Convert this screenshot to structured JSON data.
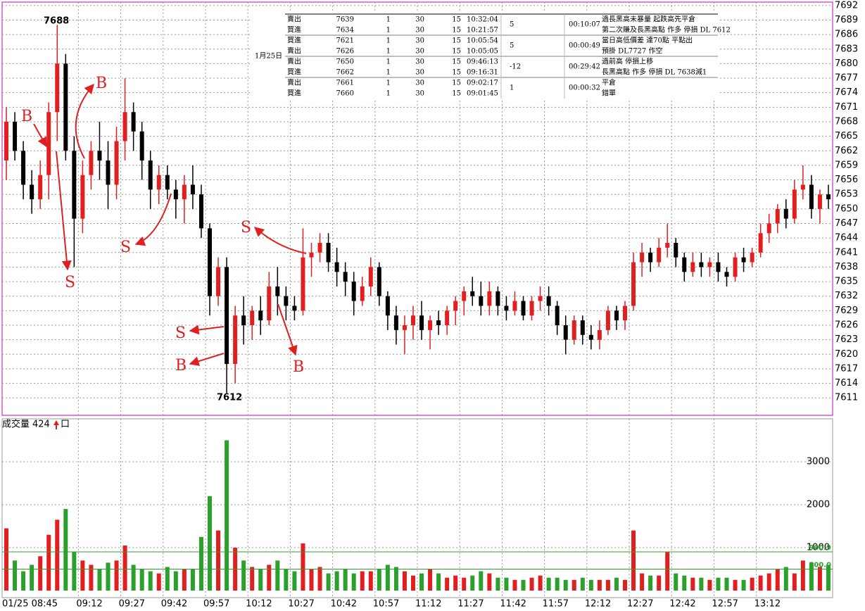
{
  "chart_data": {
    "type": "candlestick",
    "categories": [
      "01/25 08:45",
      null,
      null,
      null,
      null,
      null,
      null,
      null,
      null,
      "09:12",
      null,
      null,
      null,
      null,
      "09:27",
      null,
      null,
      null,
      null,
      "09:42",
      null,
      null,
      null,
      null,
      "09:57",
      null,
      null,
      null,
      null,
      "10:12",
      null,
      null,
      null,
      null,
      "10:27",
      null,
      null,
      null,
      null,
      "10:42",
      null,
      null,
      null,
      null,
      "10:57",
      null,
      null,
      null,
      null,
      "11:12",
      null,
      null,
      null,
      null,
      "11:27",
      null,
      null,
      null,
      null,
      "11:42",
      null,
      null,
      null,
      null,
      "11:57",
      null,
      null,
      null,
      null,
      "12:12",
      null,
      null,
      null,
      null,
      "12:27",
      null,
      null,
      null,
      null,
      "12:42",
      null,
      null,
      null,
      null,
      "12:57",
      null,
      null,
      null,
      null,
      "13:12",
      null,
      null,
      null,
      null,
      null,
      null,
      null,
      null
    ],
    "open": [
      7660,
      7668,
      7662,
      7655,
      7652,
      7657,
      7670,
      7680,
      7662,
      7648,
      7657,
      7662,
      7660,
      7655,
      7664,
      7670,
      7666,
      7660,
      7654,
      7657,
      7654,
      7652,
      7655,
      7653,
      7646,
      7632,
      7638,
      7618,
      7628,
      7626,
      7629,
      7627,
      7634,
      7632,
      7630,
      7629,
      7640,
      7641,
      7643,
      7639,
      7637,
      7635,
      7631,
      7634,
      7638,
      7632,
      7628,
      7625,
      7626,
      7628,
      7625,
      7627,
      7626,
      7629,
      7631,
      7633,
      7632,
      7630,
      7633,
      7630,
      7629,
      7631,
      7628,
      7631,
      7632,
      7630,
      7626,
      7623,
      7627,
      7624,
      7623,
      7625,
      7629,
      7627,
      7630,
      7639,
      7641,
      7639,
      7642,
      7643,
      7640,
      7637,
      7639,
      7638,
      7639,
      7637,
      7636,
      7640,
      7639,
      7641,
      7645,
      7647,
      7650,
      7648,
      7654,
      7655,
      7650,
      7653
    ],
    "high": [
      7671,
      7670,
      7664,
      7658,
      7660,
      7672,
      7688,
      7682,
      7665,
      7660,
      7664,
      7668,
      7664,
      7667,
      7677,
      7672,
      7668,
      7662,
      7659,
      7659,
      7656,
      7657,
      7659,
      7655,
      7647,
      7640,
      7640,
      7630,
      7632,
      7630,
      7632,
      7637,
      7638,
      7634,
      7632,
      7646,
      7643,
      7645,
      7645,
      7642,
      7639,
      7637,
      7636,
      7640,
      7639,
      7633,
      7630,
      7628,
      7630,
      7631,
      7628,
      7629,
      7630,
      7632,
      7634,
      7636,
      7635,
      7635,
      7634,
      7632,
      7633,
      7632,
      7632,
      7634,
      7634,
      7631,
      7628,
      7628,
      7628,
      7626,
      7627,
      7630,
      7630,
      7631,
      7641,
      7643,
      7642,
      7644,
      7647,
      7644,
      7641,
      7641,
      7641,
      7640,
      7641,
      7638,
      7641,
      7642,
      7642,
      7647,
      7649,
      7651,
      7652,
      7656,
      7659,
      7657,
      7654,
      7655
    ],
    "low": [
      7656,
      7660,
      7652,
      7649,
      7650,
      7652,
      7664,
      7660,
      7638,
      7645,
      7654,
      7656,
      7650,
      7652,
      7660,
      7662,
      7656,
      7650,
      7651,
      7652,
      7648,
      7647,
      7650,
      7644,
      7628,
      7630,
      7612,
      7614,
      7622,
      7623,
      7624,
      7626,
      7628,
      7627,
      7627,
      7628,
      7636,
      7639,
      7637,
      7634,
      7632,
      7628,
      7630,
      7632,
      7630,
      7625,
      7622,
      7620,
      7623,
      7623,
      7621,
      7624,
      7624,
      7626,
      7628,
      7630,
      7628,
      7628,
      7628,
      7627,
      7628,
      7627,
      7627,
      7629,
      7628,
      7624,
      7620,
      7622,
      7622,
      7621,
      7621,
      7624,
      7625,
      7625,
      7629,
      7636,
      7637,
      7638,
      7640,
      7638,
      7635,
      7636,
      7636,
      7636,
      7635,
      7634,
      7635,
      7637,
      7638,
      7640,
      7643,
      7645,
      7646,
      7647,
      7652,
      7648,
      7647,
      7650
    ],
    "close": [
      7668,
      7662,
      7655,
      7652,
      7657,
      7670,
      7680,
      7662,
      7648,
      7657,
      7662,
      7660,
      7655,
      7664,
      7670,
      7666,
      7660,
      7654,
      7657,
      7654,
      7652,
      7655,
      7653,
      7646,
      7632,
      7638,
      7618,
      7628,
      7626,
      7629,
      7627,
      7634,
      7632,
      7630,
      7629,
      7640,
      7641,
      7643,
      7639,
      7637,
      7635,
      7631,
      7634,
      7638,
      7632,
      7628,
      7625,
      7626,
      7628,
      7625,
      7627,
      7626,
      7629,
      7631,
      7633,
      7632,
      7630,
      7633,
      7630,
      7629,
      7631,
      7628,
      7631,
      7632,
      7630,
      7626,
      7623,
      7627,
      7624,
      7623,
      7625,
      7629,
      7627,
      7630,
      7639,
      7641,
      7639,
      7642,
      7643,
      7640,
      7637,
      7639,
      7638,
      7639,
      7637,
      7636,
      7640,
      7639,
      7641,
      7645,
      7647,
      7650,
      7648,
      7654,
      7655,
      7650,
      7653,
      7652
    ],
    "up_color": "#e02020",
    "down_color": "#000000",
    "ylim": [
      7607.4,
      7692.7
    ],
    "yticks": [
      7611,
      7614,
      7617,
      7620,
      7623,
      7626,
      7629,
      7632,
      7635,
      7638,
      7641,
      7644,
      7647,
      7650,
      7653,
      7656,
      7659,
      7662,
      7665,
      7668,
      7671,
      7674,
      7677,
      7680,
      7683,
      7686,
      7689,
      7692
    ],
    "grid": true,
    "high_label": 7688,
    "low_label": 7612,
    "annotations": [
      "B",
      "B",
      "S",
      "S",
      "S",
      "S",
      "B",
      "B"
    ],
    "volume": {
      "title": "成交量",
      "current": 424,
      "unit": "口",
      "values": [
        1450,
        700,
        450,
        600,
        800,
        1300,
        1650,
        1900,
        900,
        700,
        600,
        500,
        650,
        700,
        1050,
        600,
        500,
        450,
        400,
        550,
        450,
        500,
        500,
        1250,
        2200,
        1400,
        3500,
        1000,
        700,
        550,
        500,
        600,
        700,
        500,
        450,
        1100,
        500,
        550,
        400,
        450,
        500,
        400,
        450,
        450,
        500,
        600,
        550,
        450,
        350,
        400,
        500,
        400,
        300,
        350,
        300,
        350,
        450,
        400,
        300,
        300,
        250,
        250,
        300,
        350,
        300,
        300,
        250,
        250,
        300,
        250,
        250,
        250,
        300,
        250,
        1400,
        400,
        350,
        350,
        900,
        400,
        350,
        300,
        300,
        250,
        300,
        300,
        250,
        250,
        300,
        350,
        400,
        500,
        550,
        400,
        700,
        650,
        550,
        600
      ],
      "up_color": "#e02020",
      "down_color": "#2ca02c",
      "ylim": [
        0,
        4000
      ],
      "yticks": [
        1000,
        2000,
        3000
      ],
      "reference_lines": [
        {
          "value": 900.9,
          "label": "900.9"
        },
        {
          "value": 500,
          "label": "500.0"
        }
      ],
      "reference_color": "#2ca02c"
    }
  },
  "table": {
    "date": "1月25日",
    "groups": [
      {
        "rows": [
          [
            "賣出",
            "7639",
            "1",
            "30",
            "15",
            "10:32:04"
          ],
          [
            "買進",
            "7634",
            "1",
            "30",
            "15",
            "10:21:57"
          ]
        ],
        "diff": "5",
        "duration": "00:10:07",
        "notes": [
          "過長黑高未暴量 起跌高先平倉",
          "第二次賺及長黑高點  作多  停損 DL 7612"
        ]
      },
      {
        "rows": [
          [
            "買進",
            "7621",
            "1",
            "30",
            "15",
            "10:05:54"
          ],
          [
            "賣出",
            "7626",
            "1",
            "30",
            "15",
            "10:05:05"
          ]
        ],
        "diff": "5",
        "duration": "00:00:49",
        "notes": [
          "當日高低價差 達70點  平點出",
          "預掛 DL7727  作空"
        ]
      },
      {
        "rows": [
          [
            "賣出",
            "7650",
            "1",
            "30",
            "15",
            "09:46:13"
          ],
          [
            "買進",
            "7662",
            "1",
            "30",
            "15",
            "09:16:31"
          ]
        ],
        "diff": "-12",
        "duration": "00:29:42",
        "notes": [
          "過前高  停損上移",
          "長黑高點   作多  停損 DL  7638減1"
        ]
      },
      {
        "rows": [
          [
            "賣出",
            "7661",
            "1",
            "30",
            "15",
            "09:02:17"
          ],
          [
            "買進",
            "7660",
            "1",
            "30",
            "15",
            "09:01:45"
          ]
        ],
        "diff": "1",
        "duration": "00:00:32",
        "notes": [
          "平倉",
          "錯單"
        ]
      }
    ]
  }
}
